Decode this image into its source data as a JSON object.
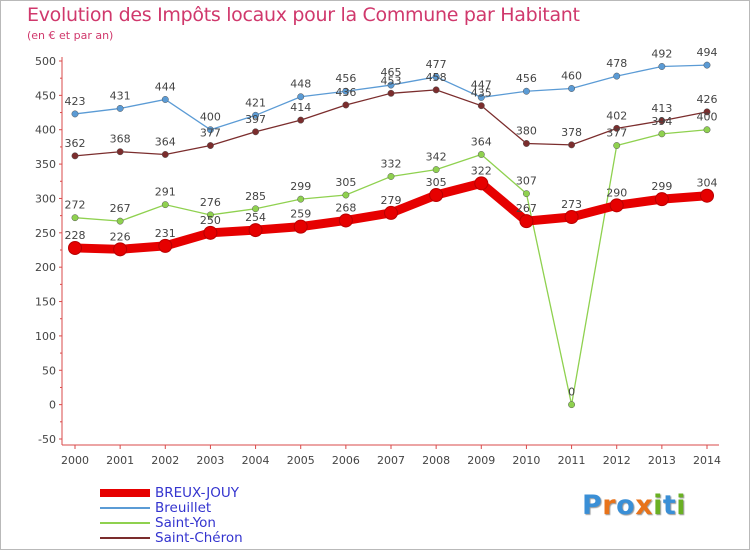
{
  "header": {
    "title": "Evolution des Impôts locaux pour la Commune par Habitant",
    "subtitle": "(en € et par an)"
  },
  "logo": {
    "letters": [
      "P",
      "r",
      "o",
      "x",
      "i",
      "t",
      "i"
    ],
    "colors": [
      "#3a8fd6",
      "#e8731a",
      "#3a8fd6",
      "#e8731a",
      "#6ab023",
      "#3a8fd6",
      "#6ab023"
    ]
  },
  "chart_data": {
    "type": "line",
    "title": "Evolution des Impôts locaux pour la Commune par Habitant",
    "subtitle": "(en € et par an)",
    "categories": [
      "2000",
      "2001",
      "2002",
      "2003",
      "2004",
      "2005",
      "2006",
      "2007",
      "2008",
      "2009",
      "2010",
      "2011",
      "2012",
      "2013",
      "2014"
    ],
    "ylim": [
      -50,
      500
    ],
    "yticks": [
      -50,
      0,
      50,
      100,
      150,
      200,
      250,
      300,
      350,
      400,
      450,
      500
    ],
    "grid": false,
    "legend_position": "bottom-left",
    "series": [
      {
        "name": "Breuillet",
        "color": "#5b9bd5",
        "values": [
          423,
          431,
          444,
          400,
          421,
          448,
          456,
          465,
          477,
          447,
          456,
          460,
          478,
          492,
          494
        ]
      },
      {
        "name": "Saint-Chéron",
        "color": "#7b2d2d",
        "values": [
          362,
          368,
          364,
          377,
          397,
          414,
          436,
          453,
          458,
          435,
          380,
          378,
          402,
          413,
          426
        ]
      },
      {
        "name": "Saint-Yon",
        "color": "#8fd14f",
        "values": [
          272,
          267,
          291,
          276,
          285,
          299,
          305,
          332,
          342,
          364,
          307,
          0,
          377,
          394,
          400
        ]
      },
      {
        "name": "BREUX-JOUY",
        "color": "#e60000",
        "values": [
          228,
          226,
          231,
          250,
          254,
          259,
          268,
          279,
          305,
          322,
          267,
          273,
          290,
          299,
          304
        ]
      }
    ],
    "legend": [
      "BREUX-JOUY",
      "Breuillet",
      "Saint-Yon",
      "Saint-Chéron"
    ]
  }
}
